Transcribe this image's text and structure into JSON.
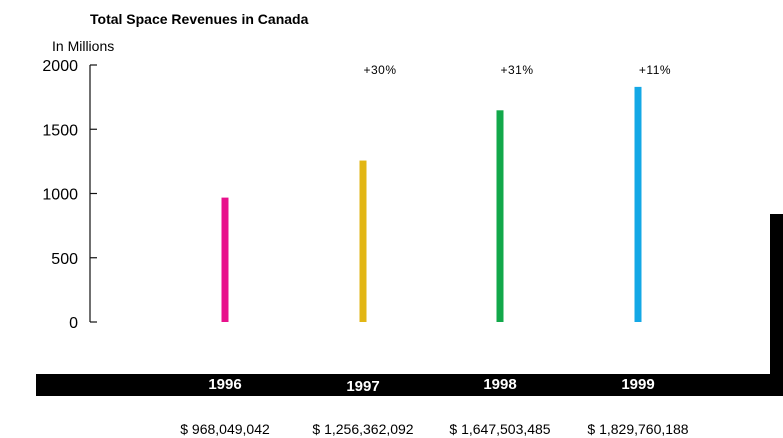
{
  "chart_data": {
    "type": "bar",
    "title": "Total Space Revenues in Canada",
    "ylabel": "In Millions",
    "ylim": [
      0,
      2000
    ],
    "yticks": [
      0,
      500,
      1000,
      1500,
      2000
    ],
    "categories": [
      "1996",
      "1997",
      "1998",
      "1999"
    ],
    "values": [
      968.049042,
      1256.362092,
      1647.503485,
      1829.760188
    ],
    "value_labels": [
      "$ 968,049,042",
      "$ 1,256,362,092",
      "$ 1,647,503,485",
      "$ 1,829,760,188"
    ],
    "growth_labels": [
      "",
      "+30%",
      "+31%",
      "+11%"
    ],
    "colors": [
      "#e8118c",
      "#e2b614",
      "#12a84a",
      "#14a8e6"
    ],
    "grid": false
  }
}
